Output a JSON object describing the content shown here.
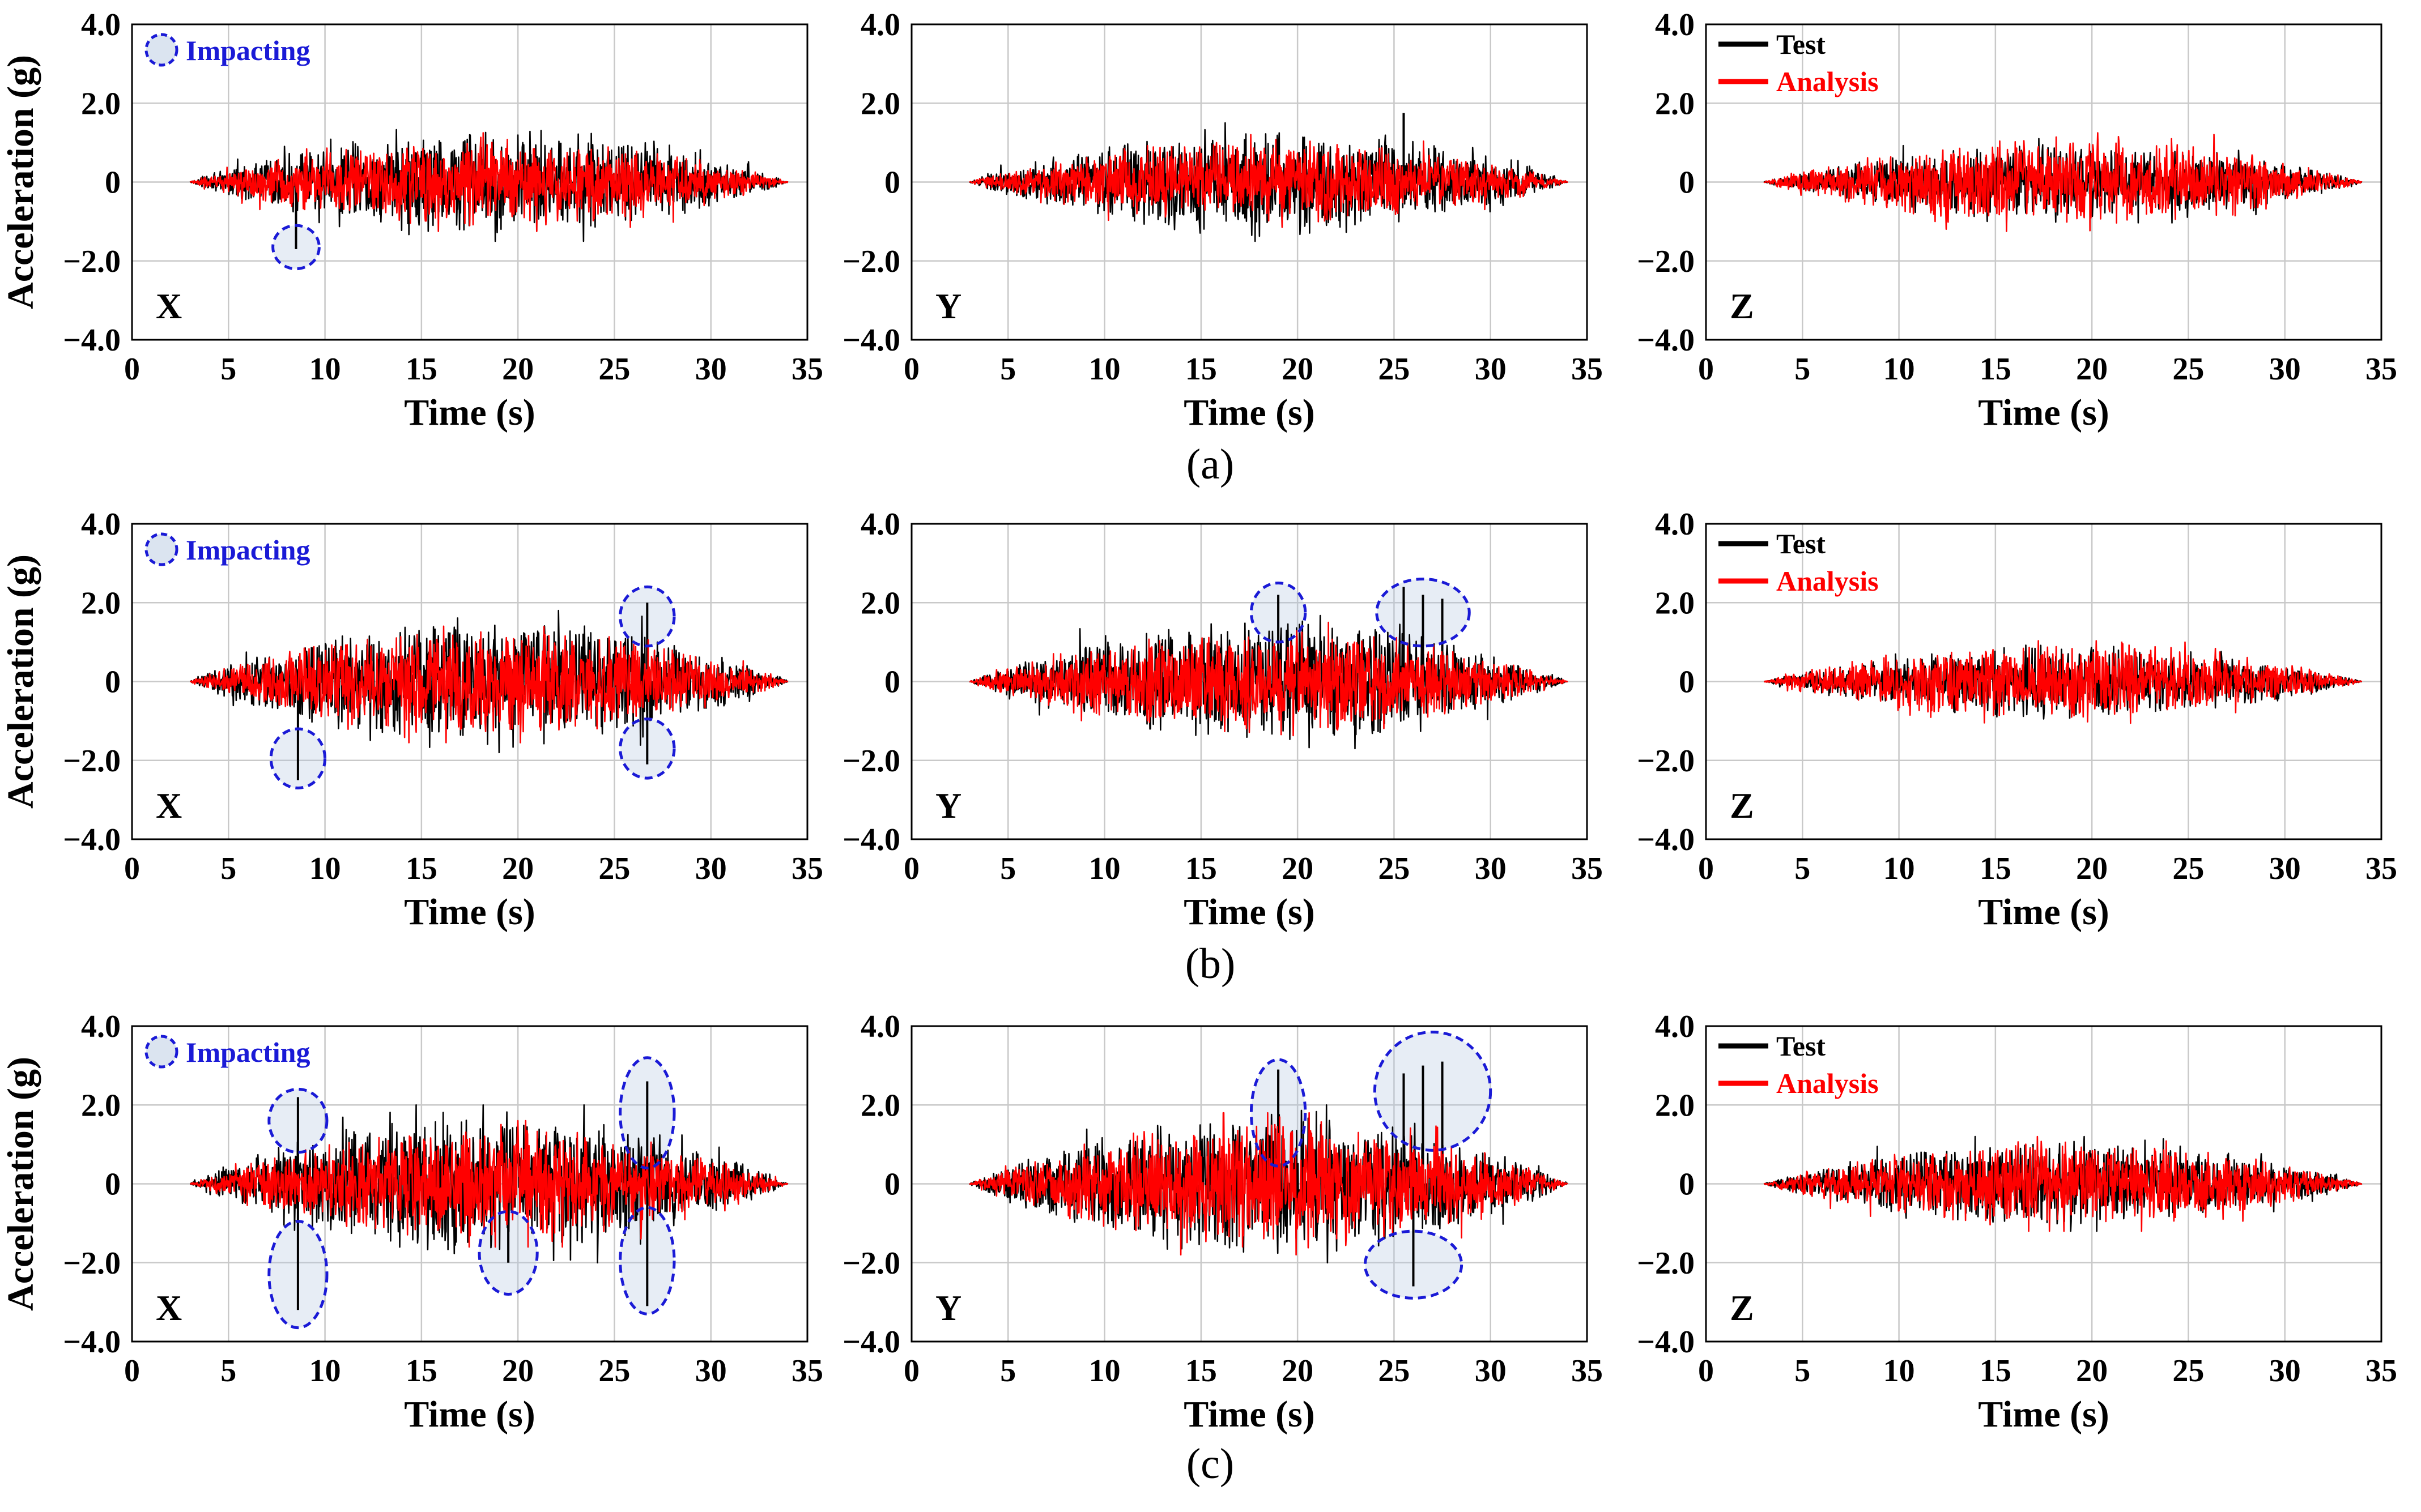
{
  "figure": {
    "row_captions": [
      "(a)",
      "(b)",
      "(c)"
    ],
    "x_axis_label": "Time (s)",
    "y_axis_label": "Acceleration (g)",
    "impact_label": "Impacting",
    "legend": [
      {
        "name": "Test",
        "color": "#000000"
      },
      {
        "name": "Analysis",
        "color": "#ff0000"
      }
    ],
    "colors": {
      "test": "#000000",
      "analysis": "#ff0000",
      "impact": "#1a1ad6"
    }
  },
  "chart_data": [
    {
      "type": "line",
      "row": "a",
      "direction": "X",
      "xlim": [
        0,
        35
      ],
      "ylim": [
        -4,
        4
      ],
      "xticks": [
        "0",
        "5",
        "10",
        "15",
        "20",
        "25",
        "30",
        "35"
      ],
      "yticks": [
        "4.0",
        "2.0",
        "0",
        "-2.0",
        "-4.0"
      ],
      "xlabel": "Time (s)",
      "ylabel": "Acceleration (g)",
      "signal": {
        "start": 3,
        "end": 34,
        "test_peak": 1.5,
        "analysis_peak": 1.25
      },
      "impact_spikes": [
        {
          "t": 8.5,
          "value": -1.7
        }
      ],
      "impact_regions": [
        {
          "t": 8.5,
          "y": -1.65,
          "rt": 1.2,
          "ry": 0.55
        }
      ],
      "show_impact_key": true,
      "show_legend": false
    },
    {
      "type": "line",
      "row": "a",
      "direction": "Y",
      "xlim": [
        0,
        35
      ],
      "ylim": [
        -4,
        4
      ],
      "xticks": [
        "0",
        "5",
        "10",
        "15",
        "20",
        "25",
        "30",
        "35"
      ],
      "yticks": [
        "4.0",
        "2.0",
        "0",
        "-2.0",
        "-4.0"
      ],
      "xlabel": "Time (s)",
      "ylabel": "",
      "signal": {
        "start": 3,
        "end": 34,
        "test_peak": 1.5,
        "analysis_peak": 1.2
      },
      "impact_spikes": [
        {
          "t": 25.5,
          "value": 1.75
        }
      ],
      "impact_regions": [],
      "show_impact_key": false,
      "show_legend": false
    },
    {
      "type": "line",
      "row": "a",
      "direction": "Z",
      "xlim": [
        0,
        35
      ],
      "ylim": [
        -4,
        4
      ],
      "xticks": [
        "0",
        "5",
        "10",
        "15",
        "20",
        "25",
        "30",
        "35"
      ],
      "yticks": [
        "4.0",
        "2.0",
        "0",
        "-2.0",
        "-4.0"
      ],
      "xlabel": "Time (s)",
      "ylabel": "",
      "signal": {
        "start": 3,
        "end": 34,
        "test_peak": 1.1,
        "analysis_peak": 1.25
      },
      "impact_spikes": [],
      "impact_regions": [],
      "show_impact_key": false,
      "show_legend": true
    },
    {
      "type": "line",
      "row": "b",
      "direction": "X",
      "xlim": [
        0,
        35
      ],
      "ylim": [
        -4,
        4
      ],
      "xticks": [
        "0",
        "5",
        "10",
        "15",
        "20",
        "25",
        "30",
        "35"
      ],
      "yticks": [
        "4.0",
        "2.0",
        "0",
        "-2.0",
        "-4.0"
      ],
      "xlabel": "Time (s)",
      "ylabel": "Acceleration (g)",
      "signal": {
        "start": 3,
        "end": 34,
        "test_peak": 1.8,
        "analysis_peak": 1.55
      },
      "impact_spikes": [
        {
          "t": 8.6,
          "value": -2.5
        },
        {
          "t": 26.7,
          "value": 2.0
        },
        {
          "t": 26.7,
          "value": -2.1
        }
      ],
      "impact_regions": [
        {
          "t": 8.6,
          "y": -1.95,
          "rt": 1.4,
          "ry": 0.75
        },
        {
          "t": 26.7,
          "y": 1.65,
          "rt": 1.4,
          "ry": 0.75
        },
        {
          "t": 26.7,
          "y": -1.7,
          "rt": 1.4,
          "ry": 0.75
        }
      ],
      "show_impact_key": true,
      "show_legend": false
    },
    {
      "type": "line",
      "row": "b",
      "direction": "Y",
      "xlim": [
        0,
        35
      ],
      "ylim": [
        -4,
        4
      ],
      "xticks": [
        "0",
        "5",
        "10",
        "15",
        "20",
        "25",
        "30",
        "35"
      ],
      "yticks": [
        "4.0",
        "2.0",
        "0",
        "-2.0",
        "-4.0"
      ],
      "xlabel": "Time (s)",
      "ylabel": "",
      "signal": {
        "start": 3,
        "end": 34,
        "test_peak": 1.7,
        "analysis_peak": 1.5
      },
      "impact_spikes": [
        {
          "t": 19.0,
          "value": 2.2
        },
        {
          "t": 25.5,
          "value": 2.4
        },
        {
          "t": 26.5,
          "value": 2.2
        },
        {
          "t": 27.5,
          "value": 2.1
        }
      ],
      "impact_regions": [
        {
          "t": 19.0,
          "y": 1.75,
          "rt": 1.4,
          "ry": 0.75
        },
        {
          "t": 26.5,
          "y": 1.75,
          "rt": 2.4,
          "ry": 0.85
        }
      ],
      "show_impact_key": false,
      "show_legend": false
    },
    {
      "type": "line",
      "row": "b",
      "direction": "Z",
      "xlim": [
        0,
        35
      ],
      "ylim": [
        -4,
        4
      ],
      "xticks": [
        "0",
        "5",
        "10",
        "15",
        "20",
        "25",
        "30",
        "35"
      ],
      "yticks": [
        "4.0",
        "2.0",
        "0",
        "-2.0",
        "-4.0"
      ],
      "xlabel": "Time (s)",
      "ylabel": "",
      "signal": {
        "start": 3,
        "end": 34,
        "test_peak": 1.0,
        "analysis_peak": 1.1
      },
      "impact_spikes": [],
      "impact_regions": [],
      "show_impact_key": false,
      "show_legend": true
    },
    {
      "type": "line",
      "row": "c",
      "direction": "X",
      "xlim": [
        0,
        35
      ],
      "ylim": [
        -4,
        4
      ],
      "xticks": [
        "0",
        "5",
        "10",
        "15",
        "20",
        "25",
        "30",
        "35"
      ],
      "yticks": [
        "4.0",
        "2.0",
        "0",
        "-2.0",
        "-4.0"
      ],
      "xlabel": "Time (s)",
      "ylabel": "Acceleration (g)",
      "signal": {
        "start": 3,
        "end": 34,
        "test_peak": 2.0,
        "analysis_peak": 1.6
      },
      "impact_spikes": [
        {
          "t": 8.6,
          "value": 2.2
        },
        {
          "t": 8.6,
          "value": -3.2
        },
        {
          "t": 19.5,
          "value": -2.0
        },
        {
          "t": 26.7,
          "value": 2.6
        },
        {
          "t": 26.7,
          "value": -3.1
        }
      ],
      "impact_regions": [
        {
          "t": 8.6,
          "y": 1.6,
          "rt": 1.5,
          "ry": 0.8
        },
        {
          "t": 8.6,
          "y": -2.3,
          "rt": 1.5,
          "ry": 1.35
        },
        {
          "t": 19.5,
          "y": -1.75,
          "rt": 1.5,
          "ry": 1.05
        },
        {
          "t": 26.7,
          "y": 1.8,
          "rt": 1.4,
          "ry": 1.4
        },
        {
          "t": 26.7,
          "y": -1.95,
          "rt": 1.4,
          "ry": 1.35
        }
      ],
      "show_impact_key": true,
      "show_legend": false
    },
    {
      "type": "line",
      "row": "c",
      "direction": "Y",
      "xlim": [
        0,
        35
      ],
      "ylim": [
        -4,
        4
      ],
      "xticks": [
        "0",
        "5",
        "10",
        "15",
        "20",
        "25",
        "30",
        "35"
      ],
      "yticks": [
        "4.0",
        "2.0",
        "0",
        "-2.0",
        "-4.0"
      ],
      "xlabel": "Time (s)",
      "ylabel": "",
      "signal": {
        "start": 3,
        "end": 34,
        "test_peak": 2.0,
        "analysis_peak": 1.8
      },
      "impact_spikes": [
        {
          "t": 19.0,
          "value": 2.9
        },
        {
          "t": 25.5,
          "value": 2.8
        },
        {
          "t": 26.5,
          "value": 3.0
        },
        {
          "t": 27.5,
          "value": 3.1
        },
        {
          "t": 26.0,
          "value": -2.6
        }
      ],
      "impact_regions": [
        {
          "t": 19.0,
          "y": 1.8,
          "rt": 1.4,
          "ry": 1.35
        },
        {
          "t": 27.0,
          "y": 2.35,
          "rt": 3.0,
          "ry": 1.5
        },
        {
          "t": 26.0,
          "y": -2.05,
          "rt": 2.5,
          "ry": 0.85
        }
      ],
      "show_impact_key": false,
      "show_legend": false
    },
    {
      "type": "line",
      "row": "c",
      "direction": "Z",
      "xlim": [
        0,
        35
      ],
      "ylim": [
        -4,
        4
      ],
      "xticks": [
        "0",
        "5",
        "10",
        "15",
        "20",
        "25",
        "30",
        "35"
      ],
      "yticks": [
        "4.0",
        "2.0",
        "0",
        "-2.0",
        "-4.0"
      ],
      "xlabel": "Time (s)",
      "ylabel": "",
      "signal": {
        "start": 3,
        "end": 34,
        "test_peak": 1.2,
        "analysis_peak": 1.2
      },
      "impact_spikes": [],
      "impact_regions": [],
      "show_impact_key": false,
      "show_legend": true
    }
  ]
}
